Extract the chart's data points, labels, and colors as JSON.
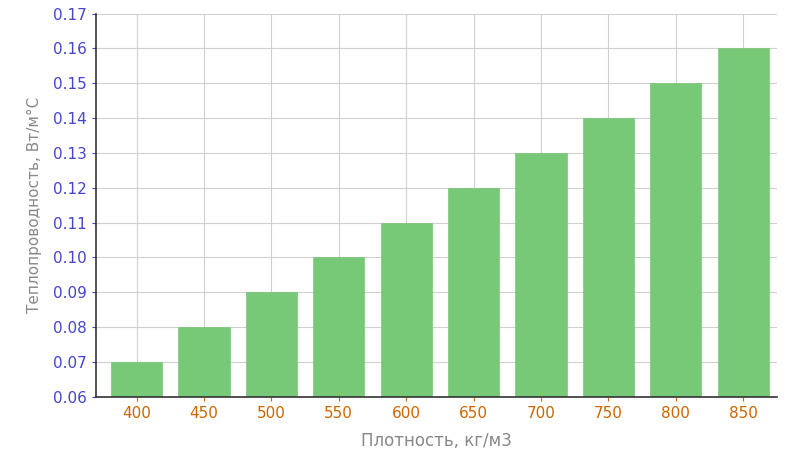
{
  "categories": [
    400,
    450,
    500,
    550,
    600,
    650,
    700,
    750,
    800,
    850
  ],
  "values": [
    0.07,
    0.08,
    0.09,
    0.1,
    0.11,
    0.12,
    0.13,
    0.14,
    0.15,
    0.16
  ],
  "bar_color": "#77c877",
  "bar_edgecolor": "#77c877",
  "xlabel": "Плотность, кг/м3",
  "ylabel": "Теплопроводность, Вт/м°С",
  "ylim": [
    0.06,
    0.17
  ],
  "yticks": [
    0.06,
    0.07,
    0.08,
    0.09,
    0.1,
    0.11,
    0.12,
    0.13,
    0.14,
    0.15,
    0.16,
    0.17
  ],
  "background_color": "#ffffff",
  "grid_color": "#d0d0d0",
  "xlabel_fontsize": 12,
  "ylabel_fontsize": 11,
  "tick_fontsize": 11,
  "ytick_color": "#4444cc",
  "xtick_color": "#cc6600",
  "label_color": "#888888",
  "spine_color": "#333333"
}
